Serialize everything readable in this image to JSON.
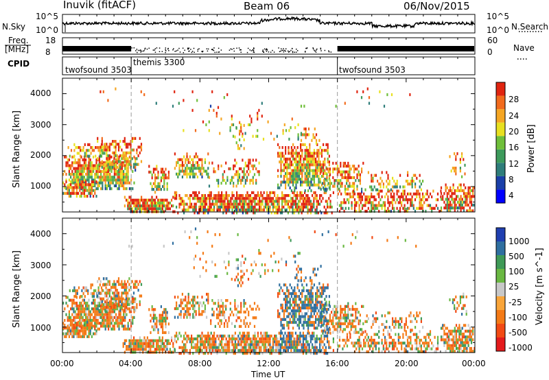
{
  "header": {
    "station": "Inuvik (fitACF)",
    "beam": "Beam 06",
    "date": "06/Nov/2015"
  },
  "noise_panel": {
    "left_label": "N.Sky",
    "right_label": "N.Search",
    "left_ticks": [
      "10^5",
      "10^0"
    ],
    "right_ticks": [
      "10^5",
      "10^0"
    ]
  },
  "freq_panel": {
    "left_label": "Freq.",
    "left_unit": "[MHz]",
    "right_label": "Nave",
    "left_ticks": [
      "18",
      "8"
    ],
    "right_ticks": [
      "60",
      "0"
    ]
  },
  "cpid_panel": {
    "label": "CPID",
    "segments": [
      {
        "name": "twofsound 3503",
        "start_h": 0,
        "end_h": 4
      },
      {
        "name": "themis 3300",
        "start_h": 4,
        "end_h": 16
      },
      {
        "name": "twofsound 3503",
        "start_h": 16,
        "end_h": 24
      }
    ]
  },
  "colors": {
    "power_scale": [
      "#0000ff",
      "#1a3fa8",
      "#2e7d7a",
      "#3d9a5b",
      "#6fbf3a",
      "#e8e020",
      "#f5a623",
      "#f26b1d",
      "#e02410"
    ],
    "velocity_scale": [
      "#e41a1c",
      "#f24a14",
      "#f47a16",
      "#f9a53a",
      "#c8c8c8",
      "#6ab842",
      "#3f9a57",
      "#2f6fa0",
      "#1f3fb0"
    ]
  },
  "chart_data": [
    {
      "type": "heatmap",
      "title": "",
      "xlabel": "",
      "ylabel": "Slant Range [km]",
      "colorbar_label": "Power [dB]",
      "colorbar_ticks": [
        "28",
        "24",
        "20",
        "16",
        "12",
        "8",
        "4"
      ],
      "x_range_h": [
        0,
        24
      ],
      "ylim": [
        180,
        4500
      ],
      "y_ticks": [
        1000,
        2000,
        3000,
        4000
      ],
      "x_ticks": [
        "00:00",
        "04:00",
        "08:00",
        "12:00",
        "16:00",
        "20:00",
        "00:00"
      ],
      "cmap_range": [
        0,
        30
      ]
    },
    {
      "type": "heatmap",
      "title": "",
      "xlabel": "Time UT",
      "ylabel": "Slant Range [km]",
      "colorbar_label": "Velocity [m s^-1]",
      "colorbar_ticks": [
        "1000",
        "500",
        "100",
        "25",
        "-25",
        "-100",
        "-500",
        "-1000"
      ],
      "x_range_h": [
        0,
        24
      ],
      "ylim": [
        180,
        4500
      ],
      "y_ticks": [
        1000,
        2000,
        3000,
        4000
      ],
      "x_ticks": [
        "00:00",
        "04:00",
        "08:00",
        "12:00",
        "16:00",
        "20:00",
        "00:00"
      ]
    }
  ]
}
